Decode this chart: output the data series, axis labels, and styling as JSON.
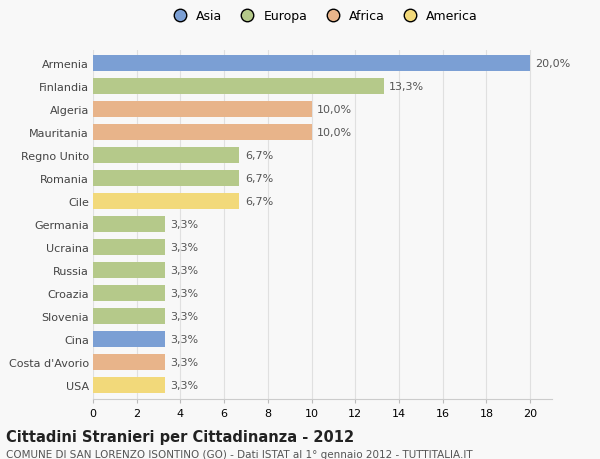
{
  "title": "Cittadini Stranieri per Cittadinanza - 2012",
  "subtitle": "COMUNE DI SAN LORENZO ISONTINO (GO) - Dati ISTAT al 1° gennaio 2012 - TUTTITALIA.IT",
  "countries": [
    "Armenia",
    "Finlandia",
    "Algeria",
    "Mauritania",
    "Regno Unito",
    "Romania",
    "Cile",
    "Germania",
    "Ucraina",
    "Russia",
    "Croazia",
    "Slovenia",
    "Cina",
    "Costa d'Avorio",
    "USA"
  ],
  "values": [
    20.0,
    13.3,
    10.0,
    10.0,
    6.7,
    6.7,
    6.7,
    3.3,
    3.3,
    3.3,
    3.3,
    3.3,
    3.3,
    3.3,
    3.3
  ],
  "continents": [
    "Asia",
    "Europa",
    "Africa",
    "Africa",
    "Europa",
    "Europa",
    "America",
    "Europa",
    "Europa",
    "Europa",
    "Europa",
    "Europa",
    "Asia",
    "Africa",
    "America"
  ],
  "labels": [
    "20,0%",
    "13,3%",
    "10,0%",
    "10,0%",
    "6,7%",
    "6,7%",
    "6,7%",
    "3,3%",
    "3,3%",
    "3,3%",
    "3,3%",
    "3,3%",
    "3,3%",
    "3,3%",
    "3,3%"
  ],
  "colors": {
    "Asia": "#7b9fd4",
    "Europa": "#b5c98a",
    "Africa": "#e8b48a",
    "America": "#f2d97a"
  },
  "background_color": "#f8f8f8",
  "plot_bg_color": "#f8f8f8",
  "xlim": [
    0,
    21
  ],
  "xticks": [
    0,
    2,
    4,
    6,
    8,
    10,
    12,
    14,
    16,
    18,
    20
  ],
  "grid_color": "#e0e0e0",
  "bar_height": 0.7,
  "label_fontsize": 8.0,
  "title_fontsize": 10.5,
  "subtitle_fontsize": 7.5,
  "tick_fontsize": 8.0,
  "legend_fontsize": 9.0
}
